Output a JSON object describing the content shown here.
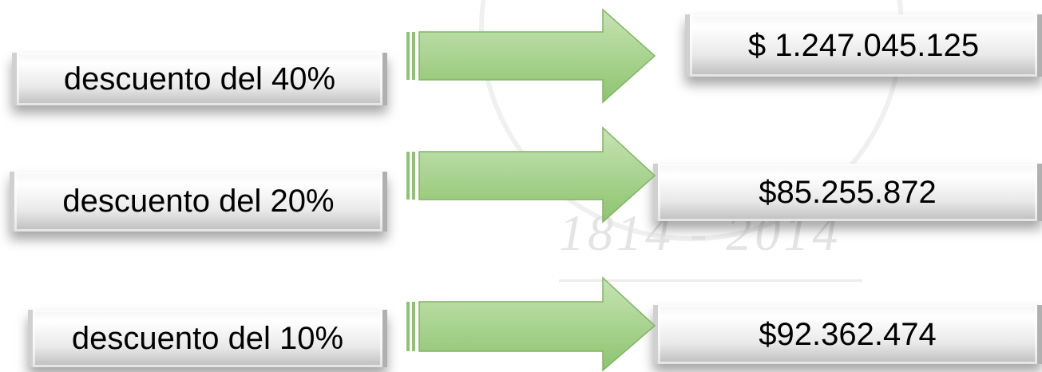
{
  "watermark": "1814 - 2014",
  "rows": [
    {
      "label": "descuento del 40%",
      "value": "$ 1.247.045.125"
    },
    {
      "label": "descuento del 20%",
      "value": "$85.255.872"
    },
    {
      "label": "descuento del 10%",
      "value": "$92.362.474"
    }
  ]
}
